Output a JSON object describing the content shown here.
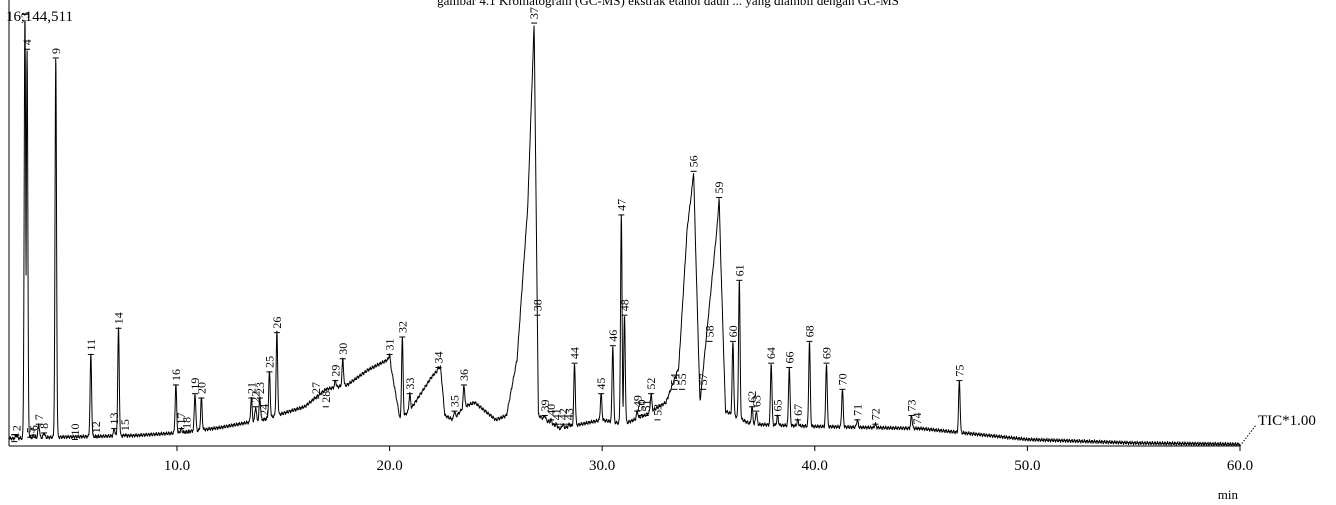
{
  "caption": "gambar 4.1 Kromatogram (GC-MS) ekstrak etanol daun ... yang diambil dengan GC-MS",
  "chart_data": {
    "type": "line",
    "xlabel": "min",
    "x_ticks": [
      "10.0",
      "20.0",
      "30.0",
      "40.0",
      "50.0",
      "60.0"
    ],
    "x_tick_values": [
      10,
      20,
      30,
      40,
      50,
      60
    ],
    "xlim": [
      2.1,
      60.0
    ],
    "ylim": [
      0,
      16144511
    ],
    "y_max_label": "16,144,511",
    "trace_label": "TIC*1.00",
    "baseline_profile": [
      [
        2.1,
        0.017
      ],
      [
        4,
        0.02
      ],
      [
        6,
        0.022
      ],
      [
        8,
        0.024
      ],
      [
        10,
        0.03
      ],
      [
        12,
        0.042
      ],
      [
        14,
        0.06
      ],
      [
        16,
        0.09
      ],
      [
        17,
        0.13
      ],
      [
        18,
        0.14
      ],
      [
        19,
        0.175
      ],
      [
        20,
        0.2
      ],
      [
        20.5,
        0.06
      ],
      [
        21,
        0.085
      ],
      [
        22,
        0.16
      ],
      [
        22.4,
        0.18
      ],
      [
        22.6,
        0.07
      ],
      [
        23,
        0.06
      ],
      [
        23.5,
        0.09
      ],
      [
        24,
        0.1
      ],
      [
        25,
        0.06
      ],
      [
        25.5,
        0.07
      ],
      [
        26,
        0.2
      ],
      [
        26.5,
        0.55
      ],
      [
        26.8,
        0.97
      ],
      [
        27,
        0.07
      ],
      [
        28,
        0.04
      ],
      [
        29,
        0.05
      ],
      [
        30,
        0.06
      ],
      [
        31,
        0.05
      ],
      [
        32,
        0.07
      ],
      [
        33,
        0.1
      ],
      [
        33.6,
        0.18
      ],
      [
        34,
        0.5
      ],
      [
        34.3,
        0.62
      ],
      [
        34.6,
        0.1
      ],
      [
        35,
        0.3
      ],
      [
        35.5,
        0.55
      ],
      [
        35.8,
        0.08
      ],
      [
        37,
        0.05
      ],
      [
        40,
        0.045
      ],
      [
        45,
        0.04
      ],
      [
        50,
        0.015
      ],
      [
        55,
        0.007
      ],
      [
        60,
        0.004
      ]
    ],
    "peaks": [
      {
        "label": "1",
        "rt": 2.35,
        "h": 0.01
      },
      {
        "label": "2",
        "rt": 2.45,
        "h": 0.025
      },
      {
        "label": "3",
        "rt": 2.85,
        "h": 0.99
      },
      {
        "label": "4",
        "rt": 2.95,
        "h": 0.91
      },
      {
        "label": "5",
        "rt": 3.1,
        "h": 0.02
      },
      {
        "label": "6",
        "rt": 3.25,
        "h": 0.025
      },
      {
        "label": "7",
        "rt": 3.5,
        "h": 0.05
      },
      {
        "label": "8",
        "rt": 3.75,
        "h": 0.03
      },
      {
        "label": "9",
        "rt": 4.3,
        "h": 0.89
      },
      {
        "label": "10",
        "rt": 5.2,
        "h": 0.015
      },
      {
        "label": "11",
        "rt": 5.95,
        "h": 0.21
      },
      {
        "label": "12",
        "rt": 6.2,
        "h": 0.02
      },
      {
        "label": "13",
        "rt": 7.05,
        "h": 0.04
      },
      {
        "label": "14",
        "rt": 7.25,
        "h": 0.27
      },
      {
        "label": "15",
        "rt": 7.55,
        "h": 0.025
      },
      {
        "label": "16",
        "rt": 9.95,
        "h": 0.14
      },
      {
        "label": "17",
        "rt": 10.2,
        "h": 0.04
      },
      {
        "label": "18",
        "rt": 10.45,
        "h": 0.03
      },
      {
        "label": "19",
        "rt": 10.85,
        "h": 0.12
      },
      {
        "label": "20",
        "rt": 11.15,
        "h": 0.11
      },
      {
        "label": "21",
        "rt": 13.5,
        "h": 0.11
      },
      {
        "label": "22",
        "rt": 13.7,
        "h": 0.09
      },
      {
        "label": "23",
        "rt": 13.9,
        "h": 0.11
      },
      {
        "label": "24",
        "rt": 14.1,
        "h": 0.06
      },
      {
        "label": "25",
        "rt": 14.35,
        "h": 0.17
      },
      {
        "label": "26",
        "rt": 14.7,
        "h": 0.26
      },
      {
        "label": "27",
        "rt": 16.55,
        "h": 0.11
      },
      {
        "label": "28",
        "rt": 17.0,
        "h": 0.09
      },
      {
        "label": "29",
        "rt": 17.45,
        "h": 0.15
      },
      {
        "label": "30",
        "rt": 17.8,
        "h": 0.2
      },
      {
        "label": "31",
        "rt": 20.0,
        "h": 0.21
      },
      {
        "label": "32",
        "rt": 20.6,
        "h": 0.25
      },
      {
        "label": "33",
        "rt": 20.95,
        "h": 0.12
      },
      {
        "label": "34",
        "rt": 22.3,
        "h": 0.18
      },
      {
        "label": "35",
        "rt": 23.05,
        "h": 0.08
      },
      {
        "label": "36",
        "rt": 23.5,
        "h": 0.14
      },
      {
        "label": "37",
        "rt": 26.8,
        "h": 0.97
      },
      {
        "label": "38",
        "rt": 26.95,
        "h": 0.3
      },
      {
        "label": "39",
        "rt": 27.3,
        "h": 0.07
      },
      {
        "label": "40",
        "rt": 27.6,
        "h": 0.06
      },
      {
        "label": "41",
        "rt": 27.85,
        "h": 0.05
      },
      {
        "label": "42",
        "rt": 28.15,
        "h": 0.05
      },
      {
        "label": "43",
        "rt": 28.45,
        "h": 0.05
      },
      {
        "label": "44",
        "rt": 28.7,
        "h": 0.19
      },
      {
        "label": "45",
        "rt": 29.95,
        "h": 0.12
      },
      {
        "label": "46",
        "rt": 30.5,
        "h": 0.23
      },
      {
        "label": "47",
        "rt": 30.9,
        "h": 0.53
      },
      {
        "label": "48",
        "rt": 31.05,
        "h": 0.3
      },
      {
        "label": "49",
        "rt": 31.65,
        "h": 0.08
      },
      {
        "label": "50",
        "rt": 31.85,
        "h": 0.07
      },
      {
        "label": "51",
        "rt": 32.05,
        "h": 0.07
      },
      {
        "label": "52",
        "rt": 32.3,
        "h": 0.12
      },
      {
        "label": "53",
        "rt": 32.6,
        "h": 0.06
      },
      {
        "label": "54",
        "rt": 33.4,
        "h": 0.13
      },
      {
        "label": "55",
        "rt": 33.75,
        "h": 0.13
      },
      {
        "label": "56",
        "rt": 34.3,
        "h": 0.63
      },
      {
        "label": "57",
        "rt": 34.75,
        "h": 0.13
      },
      {
        "label": "58",
        "rt": 35.05,
        "h": 0.24
      },
      {
        "label": "59",
        "rt": 35.5,
        "h": 0.57
      },
      {
        "label": "60",
        "rt": 36.15,
        "h": 0.24
      },
      {
        "label": "61",
        "rt": 36.45,
        "h": 0.38
      },
      {
        "label": "62",
        "rt": 37.05,
        "h": 0.09
      },
      {
        "label": "63",
        "rt": 37.25,
        "h": 0.08
      },
      {
        "label": "64",
        "rt": 37.95,
        "h": 0.19
      },
      {
        "label": "65",
        "rt": 38.25,
        "h": 0.07
      },
      {
        "label": "66",
        "rt": 38.8,
        "h": 0.18
      },
      {
        "label": "67",
        "rt": 39.2,
        "h": 0.06
      },
      {
        "label": "68",
        "rt": 39.75,
        "h": 0.24
      },
      {
        "label": "69",
        "rt": 40.55,
        "h": 0.19
      },
      {
        "label": "70",
        "rt": 41.3,
        "h": 0.13
      },
      {
        "label": "71",
        "rt": 42.0,
        "h": 0.06
      },
      {
        "label": "72",
        "rt": 42.85,
        "h": 0.05
      },
      {
        "label": "73",
        "rt": 44.55,
        "h": 0.07
      },
      {
        "label": "74",
        "rt": 44.8,
        "h": 0.04
      },
      {
        "label": "75",
        "rt": 46.8,
        "h": 0.15
      }
    ]
  }
}
